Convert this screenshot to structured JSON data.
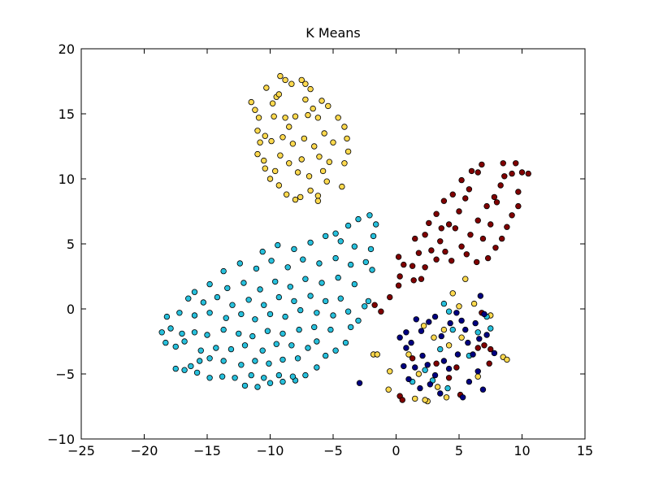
{
  "chart_data": {
    "type": "scatter",
    "title": "K Means",
    "xlim": [
      -25,
      15
    ],
    "xticks": [
      {
        "value": -25,
        "label": "−25"
      },
      {
        "value": -20,
        "label": "−20"
      },
      {
        "value": -15,
        "label": "−15"
      },
      {
        "value": -10,
        "label": "−10"
      },
      {
        "value": -5,
        "label": "−5"
      },
      0,
      5,
      10,
      15
    ],
    "ylim": [
      -10,
      20
    ],
    "yticks": [
      {
        "value": -10,
        "label": "−10"
      },
      {
        "value": -5,
        "label": "−5"
      },
      0,
      5,
      10,
      15,
      20
    ],
    "grid": false,
    "series": [
      {
        "color": "#fdd94e",
        "x": [
          -11.5,
          -11.2,
          -10.9,
          -11,
          -10.8,
          -11,
          -10.5,
          -10.4,
          -10,
          -9.3,
          -8.7,
          -8,
          -7.6,
          -6.8,
          -6.2,
          -6.2,
          -5.5,
          -4.3,
          -4.1,
          -3.8,
          -3.9,
          -4.1,
          -4.6,
          -5.4,
          -5.9,
          -6.8,
          -7.5,
          -7.2,
          -8.8,
          -8.3,
          -9.2,
          -10.3,
          -9.5,
          -9.8,
          -9.3,
          -9.7,
          -8.8,
          -8,
          -7,
          -6.2,
          -6.6,
          -7.2,
          -8.5,
          -9,
          -8.2,
          -7.3,
          -6.5,
          -5.7,
          -5,
          -5.3,
          -6.1,
          -7.5,
          -8.5,
          -9.2,
          -9.9,
          -7.8,
          -6.9,
          -5.8,
          -9.6,
          -10.4,
          -1.8,
          -1.5,
          -0.5,
          -0.6,
          1,
          2.5,
          2.3,
          4,
          1.5,
          3.3,
          5,
          4.5,
          5.5,
          3.8,
          3,
          4.2,
          8.5,
          8.8,
          7.5,
          6.2,
          1.8,
          6.5,
          5.2,
          2.2
        ],
        "y": [
          15.9,
          15.3,
          14.7,
          13.7,
          12.8,
          11.9,
          11.4,
          10.8,
          10,
          9.5,
          8.8,
          8.4,
          8.6,
          9.1,
          8.7,
          8.3,
          9.8,
          9.4,
          11.2,
          12.1,
          13.1,
          14,
          14.7,
          15.6,
          16,
          16.9,
          17.6,
          17.3,
          17.6,
          17.3,
          17.9,
          17,
          16.3,
          15.8,
          16.5,
          14.8,
          14.7,
          14.8,
          14.9,
          14.7,
          15.4,
          16.1,
          14,
          13.2,
          12.7,
          13.1,
          12.5,
          13.5,
          12.8,
          11.3,
          11.7,
          11.5,
          11.2,
          11.8,
          12.9,
          10.5,
          10.2,
          10.6,
          10.6,
          13.3,
          -3.5,
          -3.5,
          -4.8,
          -6.2,
          -3.5,
          -7.1,
          -7,
          -6.8,
          -6.9,
          -6,
          0.2,
          1.2,
          2.3,
          -1.6,
          -2.2,
          -2.8,
          -3.7,
          -3.9,
          -0.5,
          0.4,
          -5,
          -5.2,
          -2.2,
          -1.3
        ]
      },
      {
        "color": "#800000",
        "x": [
          -1.7,
          -1.2,
          -0.5,
          0.2,
          0.3,
          0.6,
          0.2,
          1.3,
          1.8,
          1.5,
          2.3,
          2.6,
          3.2,
          3.8,
          4.5,
          5.2,
          6,
          6.8,
          6.5,
          5.8,
          5,
          4.2,
          3.5,
          2.8,
          2.3,
          1.4,
          3.2,
          3.9,
          4.4,
          5.2,
          5.9,
          6.5,
          7.2,
          7.8,
          8.3,
          8.6,
          9.2,
          10,
          10.5,
          9.5,
          8.5,
          9.7,
          9.2,
          8.8,
          8.4,
          7.9,
          7.3,
          6.4,
          5.6,
          6.9,
          7.5,
          4.7,
          3.6,
          2,
          5.5,
          8,
          9.7,
          6.5,
          7,
          7.5,
          3.2,
          4.2,
          5.1,
          0.3,
          0.5,
          6.8,
          1.3,
          4.8,
          7.4
        ],
        "y": [
          0.3,
          -0.2,
          0.9,
          1.8,
          2.5,
          3.4,
          4,
          3.3,
          4.3,
          5.4,
          5.7,
          6.6,
          7.3,
          8.3,
          8.8,
          9.9,
          10.6,
          11.1,
          10.5,
          9.2,
          7.5,
          6.5,
          5.2,
          4.5,
          3.2,
          2.2,
          3.8,
          4.4,
          3.7,
          4.8,
          5.7,
          6.8,
          7.9,
          8.6,
          9.5,
          10.2,
          10.4,
          10.5,
          10.4,
          11.2,
          11.2,
          9,
          7.2,
          6.3,
          5.4,
          4.7,
          3.9,
          3.6,
          4.2,
          5.4,
          6.5,
          6.2,
          6.2,
          2.3,
          8.5,
          8.2,
          7.9,
          -3,
          -2.8,
          -3.1,
          -4.2,
          -5.3,
          -6.6,
          -6.7,
          -7,
          -0.3,
          -3.8,
          -4.5,
          -4.2
        ]
      },
      {
        "color": "#27c0dc",
        "x": [
          -12,
          -11,
          -10,
          -9,
          -8,
          -17.5,
          -16.8,
          -15.8,
          -14.8,
          -13.8,
          -12.8,
          -11.5,
          -10.5,
          -9.3,
          -8.2,
          -7.2,
          -6.3,
          -16.3,
          -15.6,
          -14.8,
          -13.7,
          -12.3,
          -11.2,
          -10.1,
          -9,
          -7.8,
          -5.6,
          -4.8,
          -4,
          -18.3,
          -17.5,
          -16.8,
          -15.5,
          -14.3,
          -13.1,
          -12,
          -10.6,
          -9.5,
          -8.3,
          -7,
          -6.3,
          -18.6,
          -17.9,
          -17,
          -16,
          -15,
          -13.7,
          -12.5,
          -11.4,
          -10.2,
          -9,
          -7.7,
          -6.5,
          -5.2,
          -3.6,
          -3,
          -18.2,
          -17.2,
          -16,
          -14.8,
          -13.5,
          -12.3,
          -11.2,
          -10,
          -8.8,
          -7.6,
          -6.3,
          -5,
          -3.8,
          -16.5,
          -15.3,
          -14.2,
          -13,
          -11.7,
          -10.5,
          -9.3,
          -8.1,
          -6.8,
          -5.6,
          -4.4,
          -2.5,
          -2.2,
          -16,
          -14.8,
          -13.4,
          -12.1,
          -10.8,
          -9.6,
          -8.4,
          -7.2,
          -5.9,
          -4.6,
          -3.3,
          -13.7,
          -12.4,
          -11.1,
          -9.9,
          -8.6,
          -7.4,
          -6.1,
          -4.8,
          -3.6,
          -2.4,
          -1.9,
          -10.6,
          -9.4,
          -8.1,
          -6.8,
          -5.6,
          -4.4,
          -3.3,
          -2,
          -1.8,
          -4.8,
          -3.8,
          -3,
          -1.6,
          -2.1,
          3.8,
          4.2,
          7.2,
          7.5,
          2.3,
          2.9,
          4.1,
          1.3,
          5.8,
          4.5,
          3.5,
          6.5
        ],
        "y": [
          -5.9,
          -6,
          -5.7,
          -5.6,
          -5.5,
          -4.6,
          -4.7,
          -4.9,
          -5.3,
          -5.2,
          -5.3,
          -5.1,
          -5.3,
          -5.1,
          -5.2,
          -5.1,
          -4.5,
          -4.4,
          -4,
          -3.8,
          -4,
          -4.3,
          -4,
          -4.2,
          -3.9,
          -3.8,
          -3.6,
          -3.2,
          -2.6,
          -2.6,
          -2.9,
          -2.5,
          -3.2,
          -3,
          -3.1,
          -2.8,
          -3.2,
          -2.7,
          -2.8,
          -3,
          -2.5,
          -1.8,
          -1.5,
          -1.9,
          -1.8,
          -2,
          -1.6,
          -1.9,
          -2.1,
          -1.7,
          -1.9,
          -1.6,
          -1.4,
          -1.6,
          -1.4,
          -0.9,
          -0.6,
          -0.3,
          -0.5,
          -0.3,
          -0.7,
          -0.4,
          -0.8,
          -0.4,
          -0.6,
          -0.1,
          -0.3,
          -0.5,
          -0.2,
          0.8,
          0.5,
          0.9,
          0.3,
          0.7,
          0.3,
          0.9,
          0.6,
          1,
          0.6,
          0.8,
          0.2,
          0.6,
          1.3,
          1.9,
          1.6,
          2,
          1.5,
          2.1,
          1.7,
          2.3,
          2,
          2.4,
          1.9,
          2.9,
          3.5,
          3.1,
          3.7,
          3.2,
          3.8,
          3.5,
          3.9,
          3.4,
          3.6,
          3,
          4.4,
          4.9,
          4.6,
          5.1,
          5.6,
          5.2,
          4.8,
          4.6,
          5.6,
          5.8,
          6.4,
          6.9,
          6.5,
          7.2,
          0.4,
          -0.2,
          -0.6,
          -1.5,
          -4.7,
          -5.5,
          -6.1,
          -5.6,
          -3.6,
          -1.6,
          -3.1,
          -1.8
        ]
      },
      {
        "color": "#000080",
        "x": [
          -2.9,
          0.3,
          0.8,
          1.2,
          1.5,
          2.1,
          2.6,
          3.1,
          2.5,
          3.1,
          3.8,
          4.3,
          4.8,
          5.2,
          5.5,
          5.7,
          6.3,
          6.7,
          7,
          6.1,
          6.6,
          7.2,
          7.8,
          6.5,
          5.8,
          6.9,
          5.3,
          3.5,
          2.7,
          1.9,
          1,
          0.6,
          4.2,
          4.9,
          0.8,
          2,
          3.6,
          1.6
        ],
        "y": [
          -5.7,
          -2.2,
          -3,
          -2.6,
          -4.5,
          -3.6,
          -1,
          -0.6,
          -4.3,
          -5.1,
          -4,
          -1.1,
          -0.3,
          -0.9,
          -1.6,
          -2.6,
          -1.1,
          1,
          -0.4,
          -3.5,
          -2.3,
          -2,
          -3.4,
          -4.8,
          -5.6,
          -6.2,
          -6.8,
          -6.5,
          -5.8,
          -6.1,
          -5.4,
          -4.4,
          -4.6,
          -3.5,
          -1.8,
          -1.7,
          -2.1,
          -0.8
        ]
      }
    ]
  }
}
